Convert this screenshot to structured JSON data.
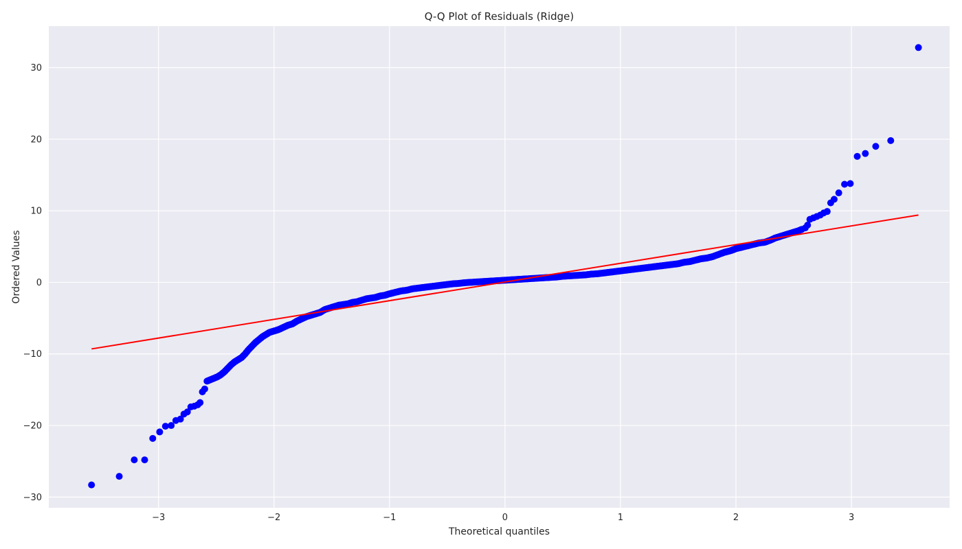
{
  "chart_data": {
    "type": "scatter",
    "title": "Q-Q Plot of Residuals (Ridge)",
    "xlabel": "Theoretical quantiles",
    "ylabel": "Ordered Values",
    "xlim": [
      -3.95,
      3.85
    ],
    "ylim": [
      -31.5,
      35.8
    ],
    "xticks": [
      -3,
      -2,
      -1,
      0,
      1,
      2,
      3
    ],
    "xtick_labels": [
      "−3",
      "−2",
      "−1",
      "0",
      "1",
      "2",
      "3"
    ],
    "yticks": [
      -30,
      -20,
      -10,
      0,
      10,
      20,
      30
    ],
    "ytick_labels": [
      "−30",
      "−20",
      "−10",
      "0",
      "10",
      "20",
      "30"
    ],
    "grid": true,
    "background": "#eaeaf2",
    "grid_color": "#ffffff",
    "series": [
      {
        "marker_color": "#0000ff",
        "points": [
          [
            -3.58,
            -28.3
          ],
          [
            -3.34,
            -27.1
          ],
          [
            -3.21,
            -24.8
          ],
          [
            -3.12,
            -24.8
          ],
          [
            -3.05,
            -21.8
          ],
          [
            -2.99,
            -20.9
          ],
          [
            -2.94,
            -20.1
          ],
          [
            -2.89,
            -20.0
          ],
          [
            -2.85,
            -19.3
          ],
          [
            -2.81,
            -19.1
          ],
          [
            -2.78,
            -18.4
          ],
          [
            -2.75,
            -18.1
          ],
          [
            -2.72,
            -17.4
          ],
          [
            -2.69,
            -17.3
          ],
          [
            -2.66,
            -17.1
          ],
          [
            -2.64,
            -16.8
          ],
          [
            -2.62,
            -15.3
          ],
          [
            -2.6,
            -14.9
          ],
          [
            -2.58,
            -13.8
          ],
          [
            -2.55,
            -13.6
          ],
          [
            -2.52,
            -13.4
          ],
          [
            -2.49,
            -13.2
          ],
          [
            -2.46,
            -12.9
          ],
          [
            -2.43,
            -12.5
          ],
          [
            -2.4,
            -12.0
          ],
          [
            -2.37,
            -11.5
          ],
          [
            -2.34,
            -11.1
          ],
          [
            -2.31,
            -10.8
          ],
          [
            -2.28,
            -10.5
          ],
          [
            -2.25,
            -10.0
          ],
          [
            -2.22,
            -9.4
          ],
          [
            -2.19,
            -8.9
          ],
          [
            -2.16,
            -8.4
          ],
          [
            -2.13,
            -8.0
          ],
          [
            -2.1,
            -7.6
          ],
          [
            -2.07,
            -7.3
          ],
          [
            -2.04,
            -7.0
          ],
          [
            -2.0,
            -6.8
          ],
          [
            -1.96,
            -6.6
          ],
          [
            -1.92,
            -6.3
          ],
          [
            -1.88,
            -6.0
          ],
          [
            -1.84,
            -5.8
          ],
          [
            -1.8,
            -5.4
          ],
          [
            -1.76,
            -5.1
          ],
          [
            -1.72,
            -4.8
          ],
          [
            -1.68,
            -4.6
          ],
          [
            -1.64,
            -4.4
          ],
          [
            -1.6,
            -4.2
          ],
          [
            -1.56,
            -3.8
          ],
          [
            -1.52,
            -3.6
          ],
          [
            -1.48,
            -3.4
          ],
          [
            -1.44,
            -3.2
          ],
          [
            -1.4,
            -3.1
          ],
          [
            -1.36,
            -3.0
          ],
          [
            -1.32,
            -2.8
          ],
          [
            -1.28,
            -2.7
          ],
          [
            -1.24,
            -2.5
          ],
          [
            -1.2,
            -2.3
          ],
          [
            -1.16,
            -2.2
          ],
          [
            -1.12,
            -2.1
          ],
          [
            -1.08,
            -1.9
          ],
          [
            -1.04,
            -1.8
          ],
          [
            -1.0,
            -1.6
          ],
          [
            -0.95,
            -1.4
          ],
          [
            -0.9,
            -1.2
          ],
          [
            -0.85,
            -1.1
          ],
          [
            -0.8,
            -0.9
          ],
          [
            -0.75,
            -0.8
          ],
          [
            -0.7,
            -0.7
          ],
          [
            -0.65,
            -0.6
          ],
          [
            -0.6,
            -0.5
          ],
          [
            -0.55,
            -0.4
          ],
          [
            -0.5,
            -0.3
          ],
          [
            -0.45,
            -0.2
          ],
          [
            -0.4,
            -0.15
          ],
          [
            -0.35,
            -0.05
          ],
          [
            -0.3,
            0.0
          ],
          [
            -0.25,
            0.05
          ],
          [
            -0.2,
            0.1
          ],
          [
            -0.15,
            0.15
          ],
          [
            -0.1,
            0.2
          ],
          [
            -0.05,
            0.25
          ],
          [
            0.0,
            0.3
          ],
          [
            0.05,
            0.35
          ],
          [
            0.1,
            0.4
          ],
          [
            0.15,
            0.45
          ],
          [
            0.2,
            0.5
          ],
          [
            0.25,
            0.55
          ],
          [
            0.3,
            0.6
          ],
          [
            0.35,
            0.65
          ],
          [
            0.4,
            0.7
          ],
          [
            0.45,
            0.75
          ],
          [
            0.5,
            0.85
          ],
          [
            0.55,
            0.9
          ],
          [
            0.6,
            0.95
          ],
          [
            0.65,
            1.0
          ],
          [
            0.7,
            1.05
          ],
          [
            0.75,
            1.15
          ],
          [
            0.8,
            1.2
          ],
          [
            0.85,
            1.3
          ],
          [
            0.9,
            1.4
          ],
          [
            0.95,
            1.5
          ],
          [
            1.0,
            1.6
          ],
          [
            1.05,
            1.7
          ],
          [
            1.1,
            1.8
          ],
          [
            1.15,
            1.9
          ],
          [
            1.2,
            2.0
          ],
          [
            1.25,
            2.1
          ],
          [
            1.3,
            2.2
          ],
          [
            1.35,
            2.3
          ],
          [
            1.4,
            2.4
          ],
          [
            1.45,
            2.5
          ],
          [
            1.5,
            2.6
          ],
          [
            1.55,
            2.8
          ],
          [
            1.6,
            2.9
          ],
          [
            1.65,
            3.1
          ],
          [
            1.7,
            3.3
          ],
          [
            1.75,
            3.4
          ],
          [
            1.8,
            3.6
          ],
          [
            1.85,
            3.9
          ],
          [
            1.9,
            4.2
          ],
          [
            1.95,
            4.4
          ],
          [
            2.0,
            4.7
          ],
          [
            2.05,
            4.9
          ],
          [
            2.1,
            5.1
          ],
          [
            2.15,
            5.3
          ],
          [
            2.2,
            5.5
          ],
          [
            2.25,
            5.6
          ],
          [
            2.3,
            5.9
          ],
          [
            2.34,
            6.2
          ],
          [
            2.38,
            6.4
          ],
          [
            2.42,
            6.6
          ],
          [
            2.46,
            6.8
          ],
          [
            2.5,
            7.0
          ],
          [
            2.54,
            7.2
          ],
          [
            2.57,
            7.4
          ],
          [
            2.6,
            7.6
          ],
          [
            2.62,
            8.0
          ],
          [
            2.64,
            8.8
          ],
          [
            2.67,
            9.0
          ],
          [
            2.7,
            9.2
          ],
          [
            2.73,
            9.4
          ],
          [
            2.76,
            9.7
          ],
          [
            2.79,
            9.9
          ],
          [
            2.82,
            11.1
          ],
          [
            2.85,
            11.6
          ],
          [
            2.89,
            12.5
          ],
          [
            2.94,
            13.7
          ],
          [
            2.99,
            13.8
          ],
          [
            3.05,
            17.6
          ],
          [
            3.12,
            18.0
          ],
          [
            3.21,
            19.0
          ],
          [
            3.34,
            19.8
          ],
          [
            3.58,
            32.8
          ]
        ]
      }
    ],
    "fit_line": {
      "color": "#ff0000",
      "x": [
        -3.58,
        3.58
      ],
      "y": [
        -9.3,
        9.4
      ]
    }
  }
}
